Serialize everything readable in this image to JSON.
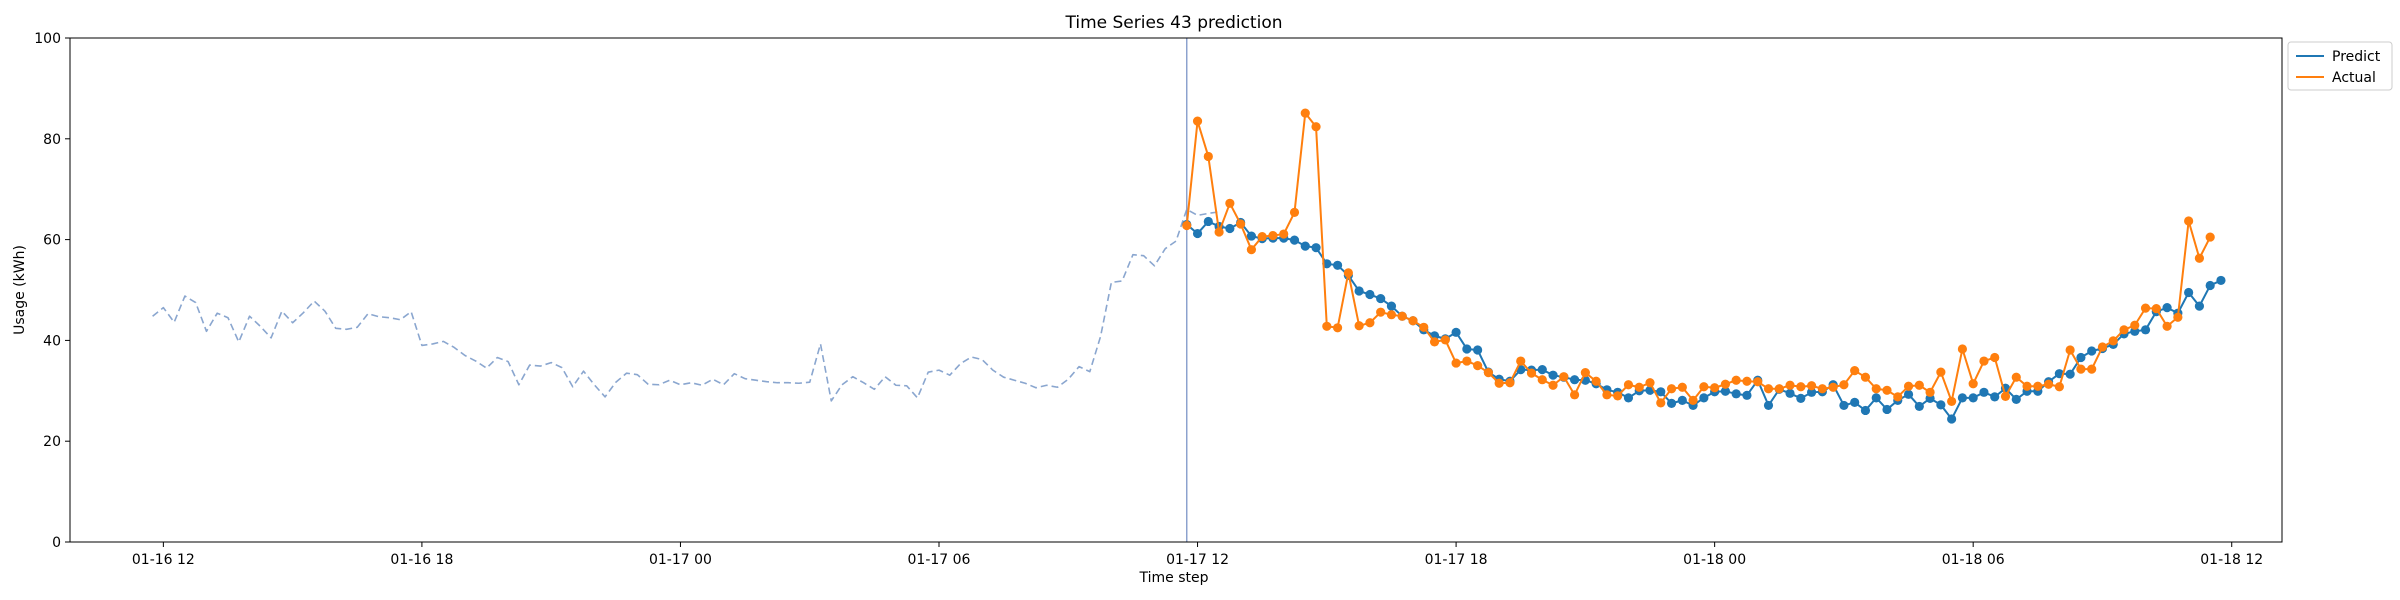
{
  "chart_data": {
    "type": "line",
    "title": "Time Series 43 prediction",
    "xlabel": "Time step",
    "ylabel": "Usage (kWh)",
    "ylim": [
      0,
      100
    ],
    "yticks": [
      0,
      20,
      40,
      60,
      80,
      100
    ],
    "xlim": [
      "2024-01-16 09:50",
      "2024-01-18 13:10"
    ],
    "xticks": [
      {
        "t": "2024-01-16 12:00",
        "label": "01-16 12"
      },
      {
        "t": "2024-01-16 18:00",
        "label": "01-16 18"
      },
      {
        "t": "2024-01-17 00:00",
        "label": "01-17 00"
      },
      {
        "t": "2024-01-17 06:00",
        "label": "01-17 06"
      },
      {
        "t": "2024-01-17 12:00",
        "label": "01-17 12"
      },
      {
        "t": "2024-01-17 18:00",
        "label": "01-17 18"
      },
      {
        "t": "2024-01-18 00:00",
        "label": "01-18 00"
      },
      {
        "t": "2024-01-18 06:00",
        "label": "01-18 06"
      },
      {
        "t": "2024-01-18 12:00",
        "label": "01-18 12"
      }
    ],
    "grid": false,
    "legend_position": "outside-top-right",
    "forecast_start": "2024-01-17 11:45",
    "history": {
      "color": "#8aa6cf",
      "style": "dashed",
      "start": "2024-01-16 11:45",
      "step_minutes": 15,
      "values": [
        44.8,
        46.5,
        43.6,
        48.8,
        47.5,
        41.8,
        45.4,
        44.5,
        39.7,
        44.8,
        42.8,
        40.5,
        45.8,
        43.5,
        45.5,
        47.8,
        45.8,
        42.4,
        42.2,
        42.6,
        45.3,
        44.7,
        44.5,
        44.1,
        45.7,
        39.0,
        39.3,
        39.8,
        38.6,
        37.0,
        35.9,
        34.5,
        36.6,
        35.8,
        31.2,
        35.1,
        34.9,
        35.6,
        34.6,
        30.8,
        33.9,
        31.2,
        28.8,
        31.7,
        33.5,
        33.2,
        31.3,
        31.2,
        32.1,
        31.2,
        31.6,
        31.1,
        32.3,
        31.2,
        33.4,
        32.4,
        32.1,
        31.8,
        31.6,
        31.6,
        31.5,
        31.7,
        39.3,
        28.0,
        31.2,
        32.8,
        31.6,
        30.3,
        32.8,
        31.1,
        31.0,
        28.6,
        33.7,
        34.1,
        33.1,
        35.4,
        36.7,
        36.2,
        34.1,
        32.7,
        32.1,
        31.5,
        30.6,
        31.1,
        30.7,
        32.3,
        34.8,
        33.8,
        40.8,
        51.5,
        51.8,
        57.0,
        56.8,
        54.8,
        58.2,
        59.7,
        66.0,
        64.8,
        65.2,
        65.5
      ]
    },
    "series": [
      {
        "name": "Predict",
        "color": "#1f77b4",
        "start": "2024-01-17 11:45",
        "step_minutes": 15,
        "values": [
          63.0,
          61.2,
          63.6,
          62.6,
          62.2,
          63.4,
          60.7,
          60.2,
          60.3,
          60.3,
          59.9,
          58.7,
          58.4,
          55.2,
          54.9,
          52.9,
          49.8,
          49.1,
          48.3,
          46.8,
          44.8,
          43.9,
          42.1,
          40.9,
          40.3,
          41.6,
          38.3,
          38.1,
          33.7,
          32.3,
          31.9,
          34.2,
          34.1,
          34.2,
          33.1,
          32.7,
          32.2,
          32.1,
          31.4,
          30.2,
          29.7,
          28.6,
          30.0,
          30.1,
          29.8,
          27.5,
          28.1,
          27.1,
          28.6,
          29.8,
          29.9,
          29.4,
          29.1,
          32.1,
          27.1,
          30.3,
          29.5,
          28.5,
          29.7,
          29.8,
          31.2,
          27.1,
          27.7,
          26.1,
          28.6,
          26.3,
          28.1,
          29.3,
          26.9,
          28.5,
          27.2,
          24.4,
          28.6,
          28.6,
          29.7,
          28.8,
          30.5,
          28.3,
          29.9,
          29.9,
          31.8,
          33.4,
          33.3,
          36.6,
          37.9,
          38.4,
          39.2,
          41.3,
          41.8,
          42.1,
          45.7,
          46.5,
          45.4,
          49.5,
          46.8,
          50.9,
          51.9
        ]
      },
      {
        "name": "Actual",
        "color": "#ff7f0e",
        "start": "2024-01-17 11:45",
        "step_minutes": 15,
        "values": [
          62.8,
          83.5,
          76.5,
          61.5,
          67.2,
          63.1,
          58.0,
          60.6,
          60.8,
          61.1,
          65.4,
          85.1,
          82.4,
          42.8,
          42.5,
          53.4,
          42.9,
          43.5,
          45.6,
          45.1,
          44.8,
          43.9,
          42.6,
          39.7,
          40.1,
          35.5,
          35.9,
          35.0,
          33.6,
          31.5,
          31.6,
          35.9,
          33.5,
          32.2,
          31.1,
          32.8,
          29.2,
          33.6,
          31.9,
          29.2,
          29.0,
          31.2,
          30.7,
          31.6,
          27.6,
          30.4,
          30.7,
          28.1,
          30.8,
          30.6,
          31.3,
          32.1,
          31.9,
          31.8,
          30.4,
          30.4,
          31.1,
          30.8,
          31.0,
          30.4,
          30.7,
          31.2,
          34.0,
          32.7,
          30.4,
          30.1,
          28.8,
          30.9,
          31.1,
          29.7,
          33.7,
          27.9,
          38.3,
          31.4,
          35.9,
          36.6,
          28.9,
          32.7,
          30.9,
          30.9,
          31.3,
          30.8,
          38.1,
          34.3,
          34.3,
          38.7,
          39.9,
          42.1,
          43.0,
          46.4,
          46.3,
          42.8,
          44.6,
          63.7,
          56.3,
          60.5
        ]
      }
    ]
  }
}
